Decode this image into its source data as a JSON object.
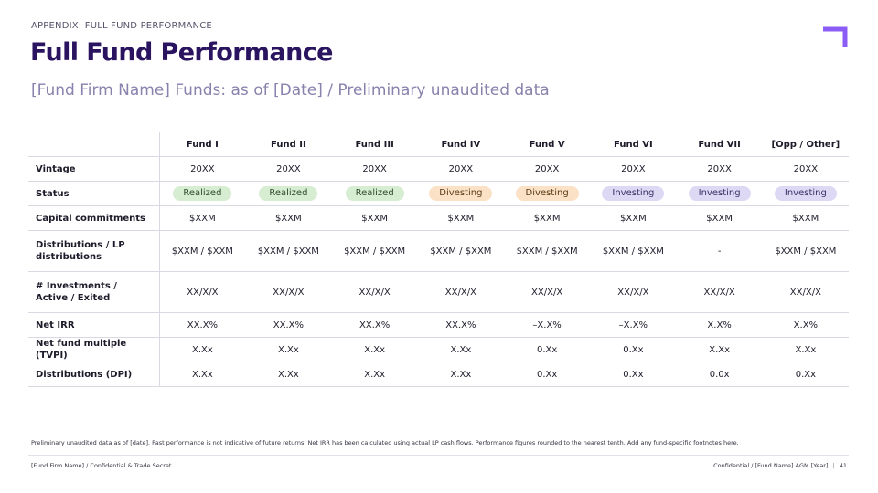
{
  "header": {
    "eyebrow": "APPENDIX: FULL FUND PERFORMANCE",
    "title": "Full Fund Performance",
    "subtitle": "[Fund Firm Name] Funds: as of [Date] / Preliminary unaudited data"
  },
  "logo_icon": "corner-bracket-logo-icon",
  "accent_colors": {
    "title": "#2a1460",
    "logo": "#8b5cf6",
    "realized": "#d6edd2",
    "divesting": "#fbe2c6",
    "investing": "#ddd9f5"
  },
  "table": {
    "columns": [
      "Fund I",
      "Fund II",
      "Fund III",
      "Fund IV",
      "Fund V",
      "Fund VI",
      "Fund VII",
      "[Opp / Other]"
    ],
    "rows": [
      {
        "label": "Vintage",
        "values": [
          "20XX",
          "20XX",
          "20XX",
          "20XX",
          "20XX",
          "20XX",
          "20XX",
          "20XX"
        ]
      },
      {
        "label": "Status",
        "values": [
          "Realized",
          "Realized",
          "Realized",
          "Divesting",
          "Divesting",
          "Investing",
          "Investing",
          "Investing"
        ]
      },
      {
        "label": "Capital commitments",
        "values": [
          "$XXM",
          "$XXM",
          "$XXM",
          "$XXM",
          "$XXM",
          "$XXM",
          "$XXM",
          "$XXM"
        ]
      },
      {
        "label": "Distributions / LP distributions",
        "values": [
          "$XXM / $XXM",
          "$XXM / $XXM",
          "$XXM / $XXM",
          "$XXM / $XXM",
          "$XXM / $XXM",
          "$XXM / $XXM",
          "-",
          "$XXM / $XXM"
        ]
      },
      {
        "label": "# Investments / Active / Exited",
        "values": [
          "XX/X/X",
          "XX/X/X",
          "XX/X/X",
          "XX/X/X",
          "XX/X/X",
          "XX/X/X",
          "XX/X/X",
          "XX/X/X"
        ]
      },
      {
        "label": "Net IRR",
        "values": [
          "XX.X%",
          "XX.X%",
          "XX.X%",
          "XX.X%",
          "–X.X%",
          "–X.X%",
          "X.X%",
          "X.X%"
        ]
      },
      {
        "label": "Net fund multiple (TVPI)",
        "values": [
          "X.Xx",
          "X.Xx",
          "X.Xx",
          "X.Xx",
          "0.Xx",
          "0.Xx",
          "X.Xx",
          "X.Xx"
        ]
      },
      {
        "label": "Distributions (DPI)",
        "values": [
          "X.Xx",
          "X.Xx",
          "X.Xx",
          "X.Xx",
          "0.Xx",
          "0.Xx",
          "0.0x",
          "0.Xx"
        ]
      }
    ]
  },
  "footnote": "Preliminary unaudited data as of [date]. Past performance is not indicative of future returns. Net IRR has been calculated using actual LP cash flows. Performance figures rounded to the nearest tenth. Add any fund-specific footnotes here.",
  "footer": {
    "left": "[Fund Firm Name] / Confidential & Trade Secret",
    "right": "Confidential / [Fund Name] AGM [Year]",
    "separator": "|",
    "page_number": "41"
  }
}
